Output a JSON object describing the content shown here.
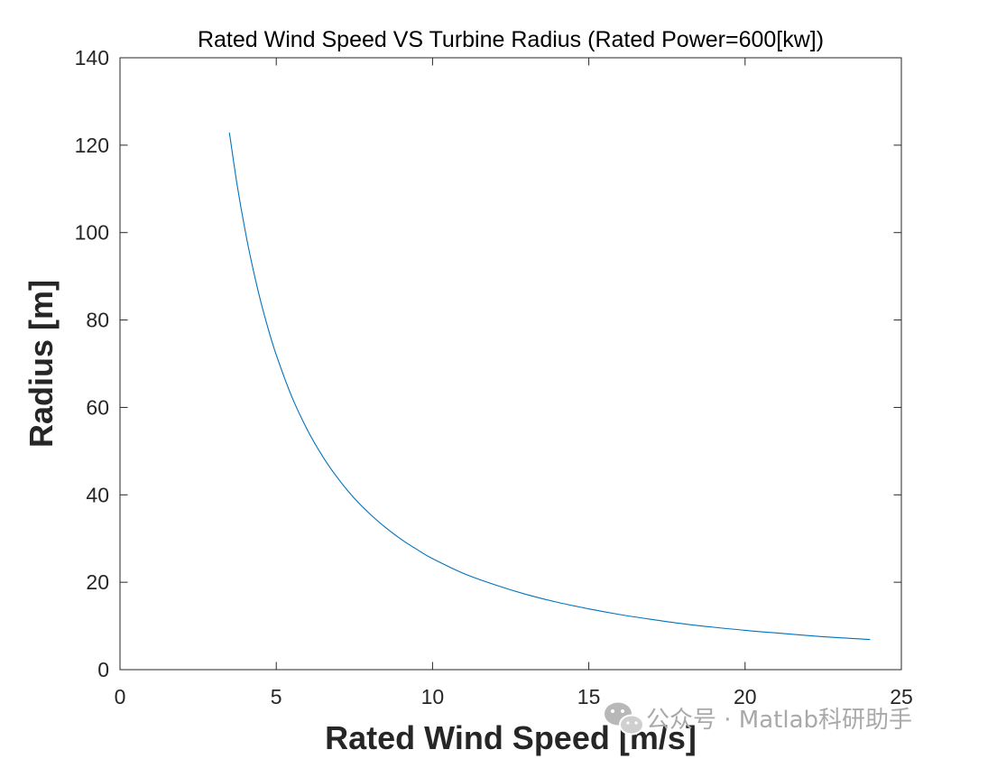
{
  "chart_data": {
    "type": "line",
    "title": "Rated Wind Speed VS Turbine Radius (Rated Power=600[kw])",
    "xlabel": "Rated Wind Speed [m/s]",
    "ylabel": "Radius [m]",
    "xlim": [
      0,
      25
    ],
    "ylim": [
      0,
      140
    ],
    "xticks": [
      0,
      5,
      10,
      15,
      20,
      25
    ],
    "yticks": [
      0,
      20,
      40,
      60,
      80,
      100,
      120,
      140
    ],
    "grid": false,
    "series": [
      {
        "color": "#0072bd",
        "x": [
          3.5,
          3.75,
          4,
          4.25,
          4.5,
          4.75,
          5,
          5.5,
          6,
          6.5,
          7,
          7.5,
          8,
          8.5,
          9,
          9.5,
          10,
          11,
          12,
          13,
          14,
          15,
          16,
          17,
          18,
          19,
          20,
          21,
          22,
          23,
          24
        ],
        "y": [
          122.9,
          110.8,
          100.6,
          91.9,
          84.3,
          77.8,
          72.0,
          62.4,
          54.8,
          48.6,
          43.5,
          39.2,
          35.6,
          32.5,
          29.8,
          27.5,
          25.4,
          22.0,
          19.4,
          17.2,
          15.4,
          13.9,
          12.6,
          11.5,
          10.5,
          9.7,
          9.0,
          8.4,
          7.8,
          7.3,
          6.9
        ]
      }
    ]
  },
  "watermark": {
    "text": "公众号 · Matlab科研助手",
    "icon": "wechat-icon"
  }
}
